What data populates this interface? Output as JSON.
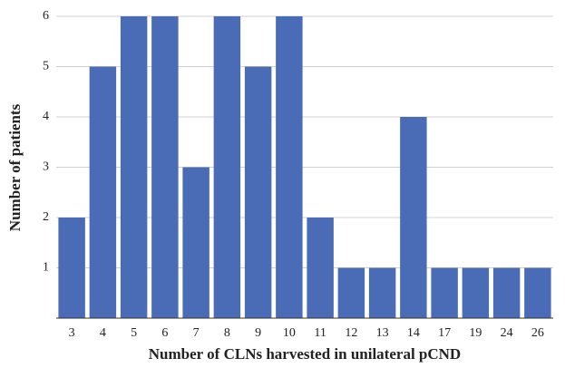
{
  "chart_data": {
    "type": "bar",
    "x_label": "Number of CLNs harvested in unilateral pCND",
    "y_label": "Number of patients",
    "categories": [
      "3",
      "4",
      "5",
      "6",
      "7",
      "8",
      "9",
      "10",
      "11",
      "12",
      "13",
      "14",
      "17",
      "19",
      "24",
      "26"
    ],
    "values": [
      2,
      5,
      6,
      6,
      3,
      6,
      5,
      6,
      2,
      1,
      1,
      4,
      1,
      1,
      1,
      1
    ],
    "color": "#4a6bb5",
    "ylim": [
      0,
      6
    ],
    "yticks": [
      1,
      2,
      3,
      4,
      5,
      6
    ],
    "grid": true
  }
}
